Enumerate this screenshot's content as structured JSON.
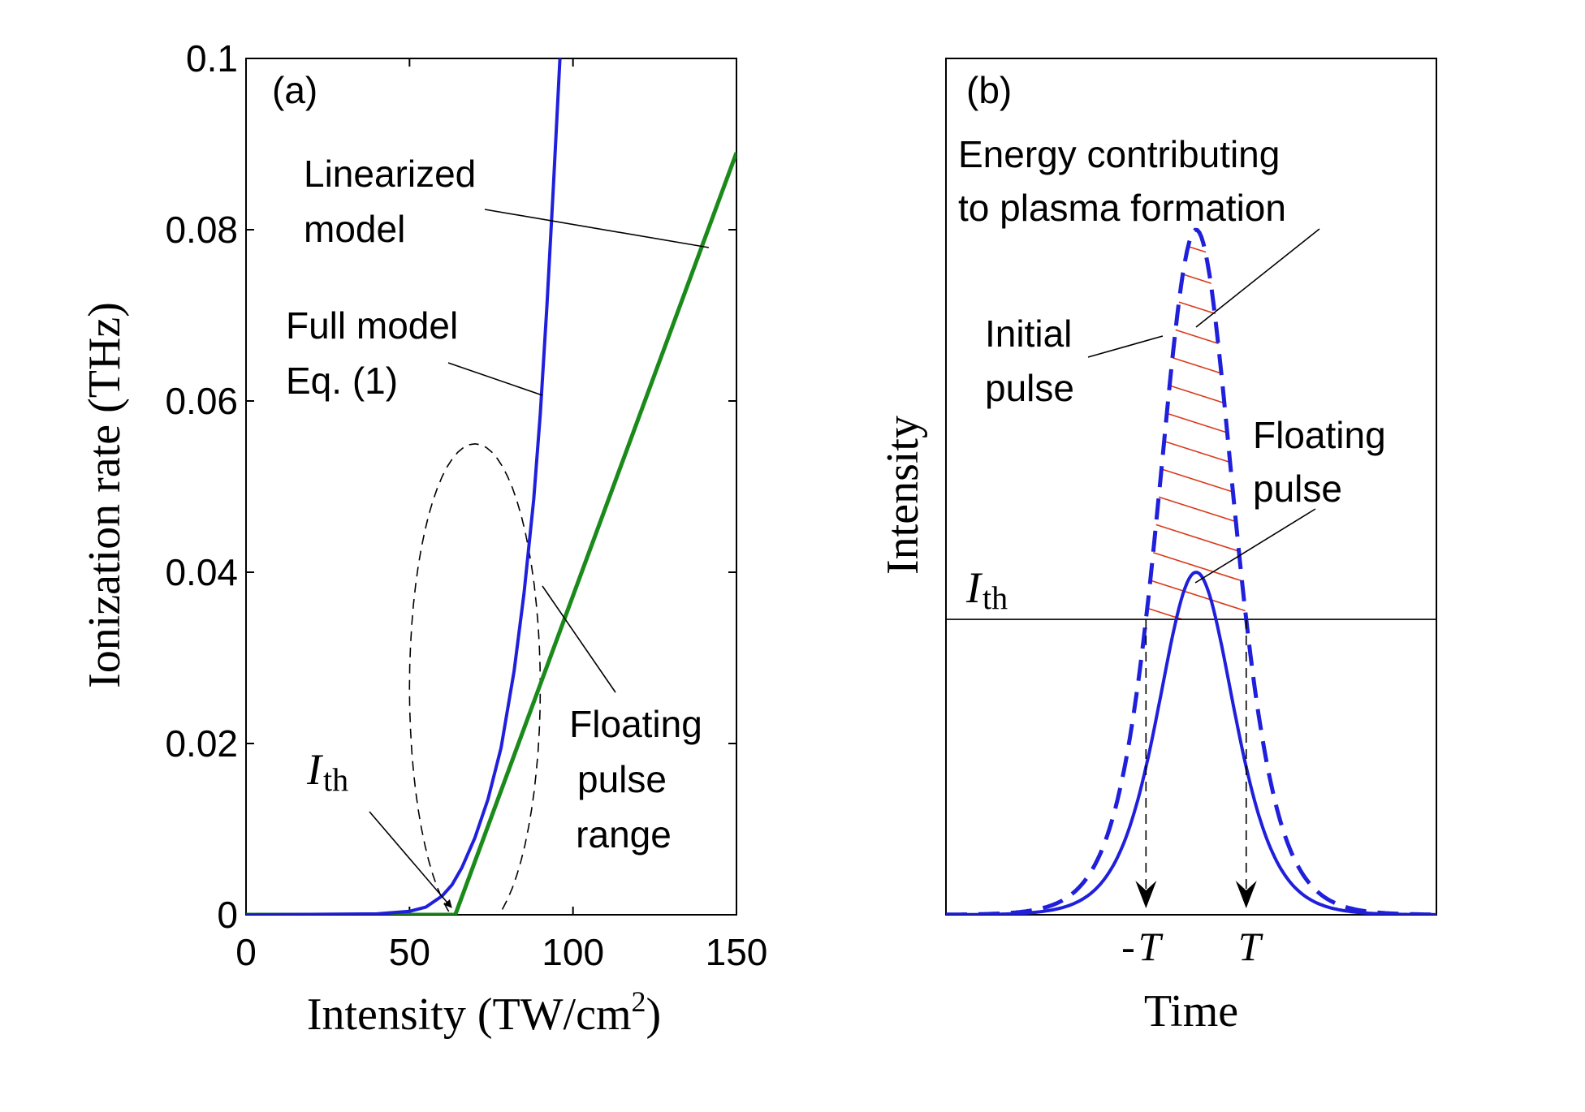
{
  "chart_data": [
    {
      "type": "line",
      "panel_label": "(a)",
      "xlabel_text": "Intensity (TW/cm",
      "xlabel_sup": "2",
      "xlabel_tail": ")",
      "ylabel": "Ionization rate (THz)",
      "xlim": [
        0,
        150
      ],
      "ylim": [
        0,
        0.1
      ],
      "xticks": [
        "0",
        "50",
        "100",
        "150"
      ],
      "xtick_values": [
        0,
        50,
        100,
        150
      ],
      "yticks": [
        "0",
        "0.02",
        "0.04",
        "0.06",
        "0.08",
        "0.1"
      ],
      "ytick_values": [
        0,
        0.02,
        0.04,
        0.06,
        0.08,
        0.1
      ],
      "grid": false,
      "series": [
        {
          "name": "Full model Eq. (1)",
          "color": "#1f1fdc",
          "style": "solid",
          "x": [
            0,
            40,
            50,
            55,
            60,
            63,
            66,
            70,
            74,
            78,
            82,
            85,
            88,
            90,
            92,
            94,
            96
          ],
          "y": [
            0,
            0.0001,
            0.0004,
            0.0009,
            0.0022,
            0.0035,
            0.0055,
            0.009,
            0.0135,
            0.0195,
            0.0285,
            0.0375,
            0.0485,
            0.0585,
            0.071,
            0.085,
            0.1
          ]
        },
        {
          "name": "Linearized model",
          "color": "#1a8a1a",
          "style": "solid",
          "x": [
            0,
            64,
            150
          ],
          "y": [
            0,
            0,
            0.089
          ]
        }
      ],
      "floating_pulse_range_ellipse": {
        "center_x": 70,
        "center_y": 0.0265,
        "half_width_x": 20,
        "half_height_y": 0.0285,
        "color": "#000000",
        "style": "dashed"
      },
      "annotations": {
        "linearized": [
          "Linearized",
          "model"
        ],
        "full_model": [
          "Full model",
          "Eq. (1)"
        ],
        "floating": [
          "Floating",
          "pulse",
          "range"
        ],
        "ith_symbol": "I",
        "ith_sub": "th"
      }
    },
    {
      "type": "line",
      "panel_label": "(b)",
      "xlabel": "Time",
      "ylabel": "Intensity",
      "xticks": [
        "-T",
        "T"
      ],
      "xtick_values": [
        -0.7,
        0.7
      ],
      "xlim": [
        -2.5,
        2.5
      ],
      "ylim": [
        0,
        1
      ],
      "threshold_level": 0.345,
      "grid": false,
      "series": [
        {
          "name": "Initial pulse",
          "color": "#1f1fdc",
          "style": "dashed",
          "peak": 0.8,
          "center": 0.05,
          "width": 0.52
        },
        {
          "name": "Floating pulse",
          "color": "#1f1fdc",
          "style": "solid",
          "peak": 0.4,
          "center": 0.05,
          "width": 0.52
        }
      ],
      "hatch_color": "#d83a1c",
      "annotations": {
        "energy": [
          "Energy contributing",
          "to plasma formation"
        ],
        "initial": [
          "Initial",
          "pulse"
        ],
        "floating": [
          "Floating",
          "pulse"
        ],
        "ith_symbol": "I",
        "ith_sub": "th",
        "tick_neg_prefix": "-",
        "tick_letter": "T"
      }
    }
  ]
}
